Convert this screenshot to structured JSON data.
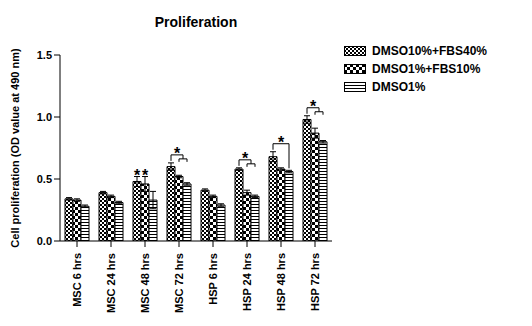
{
  "chart_data": {
    "type": "bar",
    "title": "Proliferation",
    "y_label": "Cell proliferation (OD value at 490 nm)",
    "categories": [
      "MSC 6 hrs",
      "MSC 24 hrs",
      "MSC 48 hrs",
      "MSC 72 hrs",
      "HSP 6 hrs",
      "HSP 24 hrs",
      "HSP 48 hrs",
      "HSP 72 hrs"
    ],
    "series": [
      {
        "name": "DMSO10%+FBS40%",
        "color": "#000000",
        "values": [
          0.34,
          0.39,
          0.48,
          0.6,
          0.41,
          0.58,
          0.68,
          0.98
        ],
        "errors": [
          0.01,
          0.01,
          0.04,
          0.03,
          0.01,
          0.01,
          0.04,
          0.03
        ]
      },
      {
        "name": "DMSO1%+FBS10%",
        "color": "#000000",
        "values": [
          0.33,
          0.36,
          0.46,
          0.52,
          0.36,
          0.39,
          0.58,
          0.87
        ],
        "errors": [
          0.01,
          0.01,
          0.06,
          0.01,
          0.01,
          0.02,
          0.01,
          0.04
        ]
      },
      {
        "name": "DMSO1%",
        "color": "#000000",
        "values": [
          0.28,
          0.31,
          0.33,
          0.46,
          0.29,
          0.36,
          0.56,
          0.8
        ],
        "errors": [
          0.01,
          0.01,
          0.07,
          0.01,
          0.01,
          0.01,
          0.01,
          0.01
        ]
      }
    ],
    "ylim": [
      0,
      1.5
    ],
    "yticks": [
      {
        "value": 0,
        "label": "0.0"
      },
      0.5,
      {
        "value": 1,
        "label": "1.0"
      },
      1.5
    ],
    "grid": false,
    "legend": "right",
    "annotations": [
      {
        "text": "*",
        "category": "MSC 48 hrs",
        "series": [
          "DMSO10%+FBS40%"
        ]
      },
      {
        "text": "*",
        "category": "MSC 48 hrs",
        "series": [
          "DMSO1%+FBS10%"
        ]
      },
      {
        "text": "*",
        "category": "MSC 72 hrs",
        "series": [
          "DMSO10%+FBS40%",
          "DMSO1%+FBS10%",
          "DMSO1%"
        ]
      },
      {
        "text": "*",
        "category": "HSP 24 hrs",
        "series": [
          "DMSO10%+FBS40%",
          "DMSO1%+FBS10%",
          "DMSO1%"
        ]
      },
      {
        "text": "*",
        "category": "HSP 48 hrs",
        "series": [
          "DMSO10%+FBS40%",
          "DMSO1%"
        ]
      },
      {
        "text": "*",
        "category": "HSP 72 hrs",
        "series": [
          "DMSO10%+FBS40%",
          "DMSO1%+FBS10%",
          "DMSO1%"
        ]
      }
    ]
  }
}
